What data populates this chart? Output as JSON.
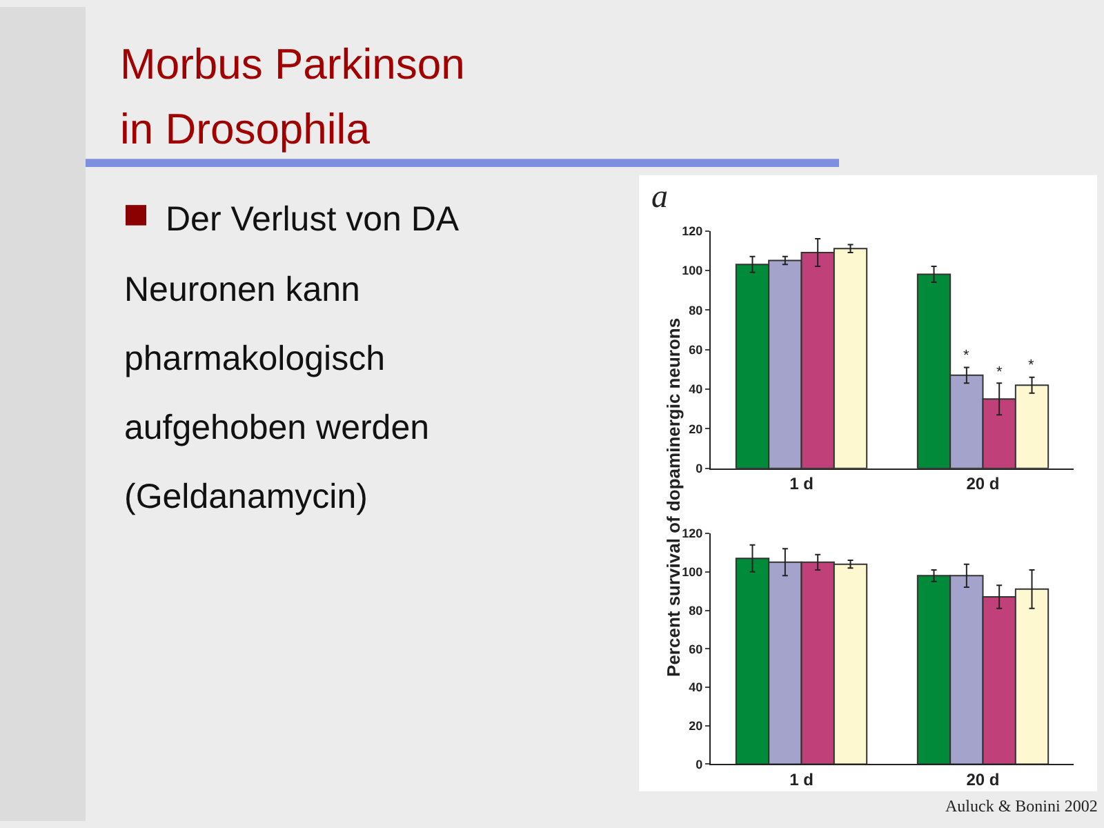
{
  "chart_data": [
    {
      "type": "other",
      "title": "Morbus Parkinson\nin Drosophila",
      "subtitle": "Der Verlust von DA\nNeuronen kann\npharmakologisch\naufgehoben werden\n(Geldanamycin)"
    },
    {
      "type": "bar",
      "ylabel": "Percent survival of dopaminergic neurons",
      "annotations": [
        "a"
      ],
      "categories": [
        "1 d",
        "20 d"
      ],
      "series": [
        {
          "color": "#008a3a",
          "values": [
            103,
            98
          ],
          "errors": [
            4,
            4
          ]
        },
        {
          "color": "#a3a3cc",
          "values": [
            105,
            47
          ],
          "errors": [
            2,
            4
          ],
          "value_labels": [
            null,
            "*"
          ]
        },
        {
          "color": "#c0407a",
          "values": [
            109,
            35
          ],
          "errors": [
            7,
            8
          ],
          "value_labels": [
            null,
            "*"
          ]
        },
        {
          "color": "#fdf8d0",
          "values": [
            111,
            42
          ],
          "errors": [
            2,
            4
          ],
          "value_labels": [
            null,
            "*"
          ]
        }
      ],
      "ylim": [
        0,
        120
      ],
      "yticks": [
        0,
        20,
        40,
        60,
        80,
        100,
        120
      ]
    },
    {
      "type": "bar",
      "annotations": [
        "Auluck & Bonini 2002"
      ],
      "categories": [
        "1 d",
        "20 d"
      ],
      "series": [
        {
          "color": "#008a3a",
          "values": [
            107,
            98
          ],
          "errors": [
            7,
            3
          ]
        },
        {
          "color": "#a3a3cc",
          "values": [
            105,
            98
          ],
          "errors": [
            7,
            6
          ]
        },
        {
          "color": "#c0407a",
          "values": [
            105,
            87
          ],
          "errors": [
            4,
            6
          ]
        },
        {
          "color": "#fdf8d0",
          "values": [
            104,
            91
          ],
          "errors": [
            2,
            10
          ]
        }
      ],
      "ylim": [
        0,
        120
      ],
      "yticks": [
        0,
        20,
        40,
        60,
        80,
        100,
        120
      ]
    }
  ]
}
